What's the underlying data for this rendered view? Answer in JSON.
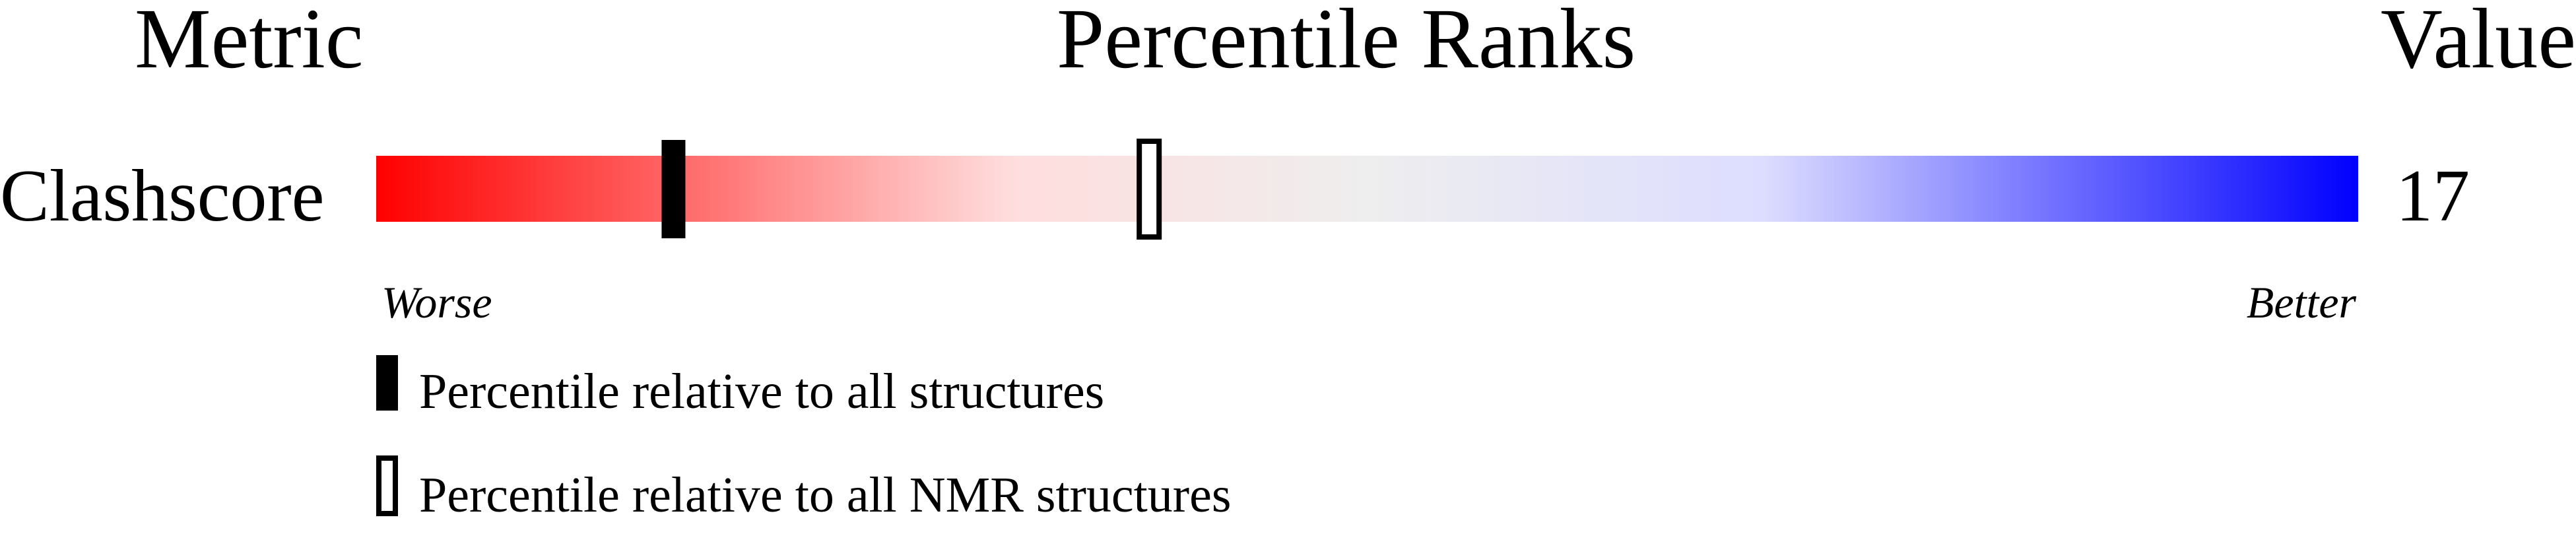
{
  "chart_data": {
    "type": "bar",
    "headers": {
      "metric": "Metric",
      "ranks": "Percentile Ranks",
      "value": "Value"
    },
    "rows": [
      {
        "metric": "Clashscore",
        "value": "17",
        "percentile_all": 15,
        "percentile_nmr": 39
      }
    ],
    "scale": {
      "min": 0,
      "max": 100,
      "worse_label": "Worse",
      "better_label": "Better"
    },
    "gradient_colors": [
      "#ff0000",
      "#ff6666",
      "#ffdddd",
      "#eeeeee",
      "#ddddff",
      "#0000ff"
    ],
    "legend": [
      {
        "marker": "filled",
        "label": "Percentile relative to all structures"
      },
      {
        "marker": "outline",
        "label": "Percentile relative to all NMR structures"
      }
    ]
  }
}
